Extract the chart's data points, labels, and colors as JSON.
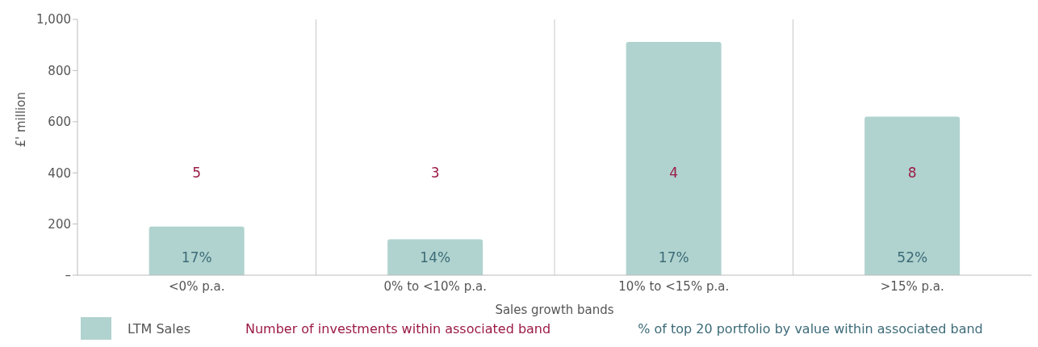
{
  "chart_data": {
    "type": "bar",
    "xlabel": "Sales growth bands",
    "ylabel": "£' million",
    "categories": [
      "<0% p.a.",
      "0% to <10% p.a.",
      "10% to <15% p.a.",
      ">15% p.a."
    ],
    "series": [
      {
        "name": "LTM Sales",
        "color": "#b0d3cf",
        "values": [
          190,
          140,
          912,
          620
        ]
      }
    ],
    "ylim": [
      0,
      1000
    ],
    "yticks": [
      {
        "value": 0,
        "label": "–"
      },
      200,
      400,
      600,
      800,
      {
        "value": 1000,
        "label": "1,000"
      }
    ],
    "grid": "x",
    "legend": "bottom",
    "annotations": [
      "5",
      "3",
      "4",
      "8",
      "17%",
      "14%",
      "17%",
      "52%",
      "Number of investments within associated band",
      "% of top 20 portfolio by value within associated band"
    ]
  }
}
